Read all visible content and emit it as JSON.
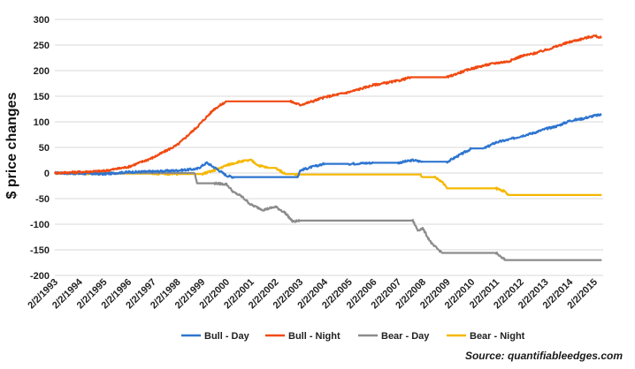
{
  "chart_data": {
    "type": "line",
    "title": "",
    "xlabel": "",
    "ylabel": "$ price changes",
    "ylim": [
      -200,
      300
    ],
    "yticks": [
      300,
      250,
      200,
      150,
      100,
      50,
      0,
      -50,
      -100,
      -150,
      -200
    ],
    "xticks": [
      "2/2/1993",
      "2/2/1994",
      "2/2/1995",
      "2/2/1996",
      "2/2/1997",
      "2/2/1998",
      "2/2/1999",
      "2/2/2000",
      "2/2/2001",
      "2/2/2002",
      "2/2/2003",
      "2/2/2004",
      "2/2/2005",
      "2/2/2006",
      "2/2/2007",
      "2/2/2008",
      "2/2/2009",
      "2/2/2010",
      "2/2/2011",
      "2/2/2012",
      "2/2/2013",
      "2/2/2014",
      "2/2/2015"
    ],
    "grid": "horizontal",
    "legend_position": "bottom",
    "series": [
      {
        "name": "Bull - Day",
        "color": "#2e75d0",
        "points": [
          [
            1993.0,
            0
          ],
          [
            1994.0,
            -1
          ],
          [
            1995.0,
            -2
          ],
          [
            1996.0,
            2
          ],
          [
            1997.0,
            3
          ],
          [
            1998.0,
            5
          ],
          [
            1998.8,
            8
          ],
          [
            1999.2,
            20
          ],
          [
            1999.7,
            5
          ],
          [
            2000.0,
            -5
          ],
          [
            2000.3,
            -8
          ],
          [
            2001.0,
            -8
          ],
          [
            2002.0,
            -8
          ],
          [
            2002.9,
            -8
          ],
          [
            2003.0,
            5
          ],
          [
            2003.5,
            12
          ],
          [
            2004.0,
            18
          ],
          [
            2005.0,
            18
          ],
          [
            2006.0,
            20
          ],
          [
            2007.0,
            20
          ],
          [
            2007.6,
            25
          ],
          [
            2008.0,
            22
          ],
          [
            2009.0,
            22
          ],
          [
            2009.5,
            35
          ],
          [
            2010.0,
            48
          ],
          [
            2010.5,
            48
          ],
          [
            2011.0,
            60
          ],
          [
            2011.5,
            65
          ],
          [
            2012.0,
            72
          ],
          [
            2012.5,
            78
          ],
          [
            2013.0,
            86
          ],
          [
            2013.5,
            92
          ],
          [
            2014.0,
            102
          ],
          [
            2014.5,
            106
          ],
          [
            2015.0,
            112
          ],
          [
            2015.3,
            114
          ]
        ]
      },
      {
        "name": "Bull - Night",
        "color": "#f04a12",
        "points": [
          [
            1993.0,
            0
          ],
          [
            1994.0,
            2
          ],
          [
            1995.0,
            4
          ],
          [
            1996.0,
            12
          ],
          [
            1997.0,
            30
          ],
          [
            1998.0,
            55
          ],
          [
            1998.8,
            90
          ],
          [
            1999.5,
            125
          ],
          [
            2000.0,
            140
          ],
          [
            2001.0,
            140
          ],
          [
            2002.0,
            140
          ],
          [
            2002.6,
            140
          ],
          [
            2003.0,
            133
          ],
          [
            2003.5,
            140
          ],
          [
            2004.0,
            148
          ],
          [
            2005.0,
            158
          ],
          [
            2006.0,
            172
          ],
          [
            2007.0,
            180
          ],
          [
            2007.5,
            187
          ],
          [
            2008.0,
            187
          ],
          [
            2009.0,
            187
          ],
          [
            2009.5,
            196
          ],
          [
            2010.0,
            204
          ],
          [
            2010.5,
            210
          ],
          [
            2011.0,
            215
          ],
          [
            2011.5,
            218
          ],
          [
            2012.0,
            228
          ],
          [
            2012.5,
            233
          ],
          [
            2013.0,
            240
          ],
          [
            2013.5,
            248
          ],
          [
            2014.0,
            256
          ],
          [
            2014.5,
            262
          ],
          [
            2015.0,
            268
          ],
          [
            2015.3,
            264
          ]
        ]
      },
      {
        "name": "Bear - Day",
        "color": "#8c8c8c",
        "points": [
          [
            1993.0,
            0
          ],
          [
            1997.0,
            0
          ],
          [
            1998.0,
            0
          ],
          [
            1998.7,
            0
          ],
          [
            1998.8,
            -20
          ],
          [
            1999.5,
            -20
          ],
          [
            2000.0,
            -22
          ],
          [
            2000.3,
            -38
          ],
          [
            2000.6,
            -45
          ],
          [
            2001.0,
            -62
          ],
          [
            2001.5,
            -72
          ],
          [
            2002.0,
            -66
          ],
          [
            2002.4,
            -78
          ],
          [
            2002.7,
            -95
          ],
          [
            2003.0,
            -93
          ],
          [
            2004.0,
            -93
          ],
          [
            2005.0,
            -93
          ],
          [
            2006.0,
            -93
          ],
          [
            2007.0,
            -93
          ],
          [
            2007.6,
            -93
          ],
          [
            2007.8,
            -112
          ],
          [
            2008.0,
            -108
          ],
          [
            2008.2,
            -125
          ],
          [
            2008.4,
            -140
          ],
          [
            2008.6,
            -148
          ],
          [
            2008.8,
            -156
          ],
          [
            2009.0,
            -156
          ],
          [
            2010.0,
            -156
          ],
          [
            2011.0,
            -156
          ],
          [
            2011.2,
            -165
          ],
          [
            2011.4,
            -170
          ],
          [
            2012.0,
            -170
          ],
          [
            2013.0,
            -170
          ],
          [
            2014.0,
            -170
          ],
          [
            2015.0,
            -170
          ],
          [
            2015.3,
            -170
          ]
        ]
      },
      {
        "name": "Bear - Night",
        "color": "#f5b800",
        "points": [
          [
            1993.0,
            0
          ],
          [
            1995.0,
            -1
          ],
          [
            1997.0,
            -1
          ],
          [
            1998.0,
            -2
          ],
          [
            1999.0,
            -2
          ],
          [
            1999.5,
            5
          ],
          [
            2000.0,
            15
          ],
          [
            2000.5,
            22
          ],
          [
            2001.0,
            25
          ],
          [
            2001.3,
            15
          ],
          [
            2001.7,
            10
          ],
          [
            2002.0,
            10
          ],
          [
            2002.4,
            -2
          ],
          [
            2002.8,
            -2
          ],
          [
            2003.0,
            -3
          ],
          [
            2004.0,
            -3
          ],
          [
            2005.0,
            -3
          ],
          [
            2006.0,
            -3
          ],
          [
            2007.0,
            -3
          ],
          [
            2007.9,
            -3
          ],
          [
            2008.0,
            -8
          ],
          [
            2008.5,
            -8
          ],
          [
            2008.8,
            -18
          ],
          [
            2009.0,
            -30
          ],
          [
            2010.0,
            -30
          ],
          [
            2011.0,
            -30
          ],
          [
            2011.3,
            -35
          ],
          [
            2011.5,
            -43
          ],
          [
            2012.0,
            -43
          ],
          [
            2013.0,
            -43
          ],
          [
            2014.0,
            -43
          ],
          [
            2015.0,
            -43
          ],
          [
            2015.3,
            -43
          ]
        ]
      }
    ]
  },
  "source_text": "Source: quantifiableedges.com"
}
